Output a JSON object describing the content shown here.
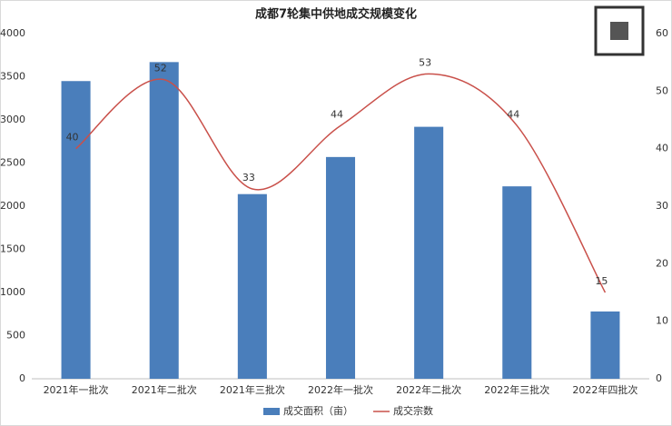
{
  "chart_data": {
    "type": "bar-line",
    "title": "成都7轮集中供地成交规模变化",
    "categories": [
      "2021年一批次",
      "2021年二批次",
      "2021年三批次",
      "2022年一批次",
      "2022年二批次",
      "2022年三批次",
      "2022年四批次"
    ],
    "series": [
      {
        "name": "成交面积（亩）",
        "type": "bar",
        "color": "#4a7ebb",
        "values": [
          3450,
          3670,
          2140,
          2570,
          2920,
          2230,
          780
        ]
      },
      {
        "name": "成交宗数",
        "type": "line",
        "axis": "y2",
        "color": "#c9504a",
        "values": [
          40,
          52,
          33,
          44,
          53,
          44,
          15
        ]
      }
    ],
    "ylim": [
      0,
      4000
    ],
    "yticks": [
      0,
      500,
      1000,
      1500,
      2000,
      2500,
      3000,
      3500,
      4000
    ],
    "y2lim": [
      0,
      60
    ],
    "y2ticks": [
      0,
      10,
      20,
      30,
      40,
      50,
      60
    ],
    "legend": "bottom",
    "grid": false
  }
}
